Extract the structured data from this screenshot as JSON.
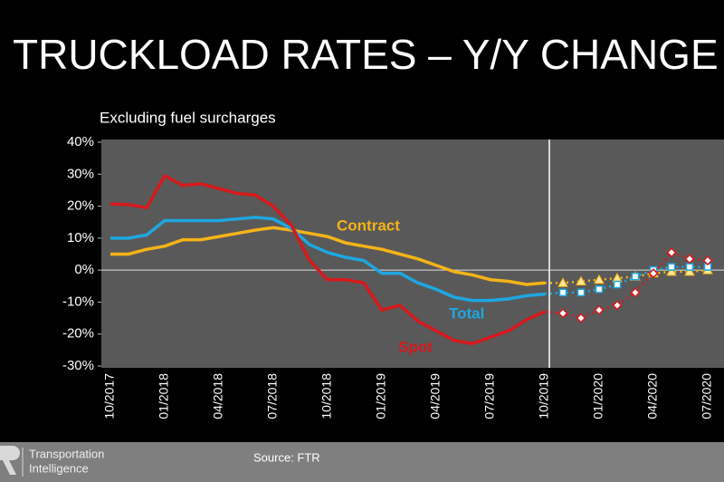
{
  "title": "TRUCKLOAD RATES – Y/Y CHANGE",
  "chart_data": {
    "type": "line",
    "subtitle": "Excluding fuel surcharges",
    "categories": [
      "10/2017",
      null,
      null,
      "01/2018",
      null,
      null,
      "04/2018",
      null,
      null,
      "07/2018",
      null,
      null,
      "10/2018",
      null,
      null,
      "01/2019",
      null,
      null,
      "04/2019",
      null,
      null,
      "07/2019",
      null,
      null,
      "10/2019",
      null,
      null,
      "01/2020",
      null,
      null,
      "04/2020",
      null,
      null,
      "07/2020"
    ],
    "ylim": [
      -30,
      40
    ],
    "yticks": [
      {
        "value": 40,
        "label": "40%"
      },
      {
        "value": 30,
        "label": "30%"
      },
      {
        "value": 20,
        "label": "20%"
      },
      {
        "value": 10,
        "label": "10%"
      },
      {
        "value": 0,
        "label": "0%"
      },
      {
        "value": -10,
        "label": "-10%"
      },
      {
        "value": -20,
        "label": "-20%"
      },
      {
        "value": -30,
        "label": "-30%"
      }
    ],
    "series": [
      {
        "name": "Contract",
        "color": "#f5b316",
        "values": [
          5,
          5,
          6.5,
          7.5,
          9.5,
          9.5,
          10.5,
          11.5,
          12.5,
          13.3,
          12.5,
          11.5,
          10.5,
          8.5,
          7.5,
          6.5,
          5,
          3.5,
          1.5,
          -0.5,
          -1.5,
          -3,
          -3.5,
          -4.5,
          -4,
          null,
          null,
          null,
          null,
          null,
          null,
          null,
          null,
          null
        ],
        "forecast_values": [
          null,
          null,
          null,
          null,
          null,
          null,
          null,
          null,
          null,
          null,
          null,
          null,
          null,
          null,
          null,
          null,
          null,
          null,
          null,
          null,
          null,
          null,
          null,
          null,
          -4,
          -4,
          -3.5,
          -3,
          -2.5,
          -2,
          -1,
          -0.5,
          -0.5,
          0
        ]
      },
      {
        "name": "Total",
        "color": "#1ea7e1",
        "values": [
          10,
          10,
          11,
          15.5,
          15.5,
          15.5,
          15.5,
          16,
          16.5,
          16,
          13,
          8,
          5.5,
          4,
          3,
          -1,
          -1,
          -4,
          -6,
          -8.5,
          -9.5,
          -9.5,
          -9,
          -8,
          -7.5,
          null,
          null,
          null,
          null,
          null,
          null,
          null,
          null,
          null
        ],
        "forecast_values": [
          null,
          null,
          null,
          null,
          null,
          null,
          null,
          null,
          null,
          null,
          null,
          null,
          null,
          null,
          null,
          null,
          null,
          null,
          null,
          null,
          null,
          null,
          null,
          null,
          -7.5,
          -7,
          -7,
          -6,
          -4.5,
          -2,
          0,
          1,
          1,
          1
        ]
      },
      {
        "name": "Spot",
        "color": "#d7191c",
        "values": [
          20.7,
          20.5,
          19.5,
          29.5,
          26.5,
          27,
          25.5,
          24,
          23.5,
          20,
          14,
          3,
          -3,
          -3,
          -4,
          -12.5,
          -11,
          -16,
          -19,
          -22,
          -23,
          -21,
          -19,
          -15.5,
          -13,
          null,
          null,
          null,
          null,
          null,
          null,
          null,
          null,
          null
        ],
        "forecast_values": [
          null,
          null,
          null,
          null,
          null,
          null,
          null,
          null,
          null,
          null,
          null,
          null,
          null,
          null,
          null,
          null,
          null,
          null,
          null,
          null,
          null,
          null,
          null,
          null,
          -13,
          -13.5,
          -15,
          -12.5,
          -11,
          -7,
          -1,
          5.5,
          3.5,
          3
        ]
      }
    ]
  },
  "footer": {
    "brand": "Transportation",
    "brand_line2": "Intelligence",
    "source": "Source: FTR"
  }
}
